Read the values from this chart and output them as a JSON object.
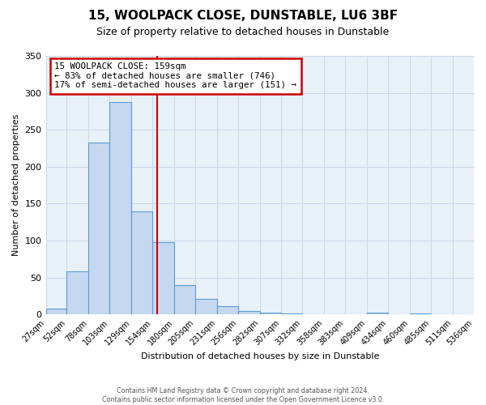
{
  "title": "15, WOOLPACK CLOSE, DUNSTABLE, LU6 3BF",
  "subtitle": "Size of property relative to detached houses in Dunstable",
  "xlabel": "Distribution of detached houses by size in Dunstable",
  "ylabel": "Number of detached properties",
  "bar_values": [
    8,
    58,
    233,
    288,
    140,
    98,
    40,
    21,
    11,
    5,
    3,
    1,
    0,
    0,
    0,
    3,
    0,
    1,
    0,
    0
  ],
  "bin_edges": [
    27,
    52,
    78,
    103,
    129,
    154,
    180,
    205,
    231,
    256,
    282,
    307,
    332,
    358,
    383,
    409,
    434,
    460,
    485,
    511,
    536
  ],
  "bin_labels": [
    "27sqm",
    "52sqm",
    "78sqm",
    "103sqm",
    "129sqm",
    "154sqm",
    "180sqm",
    "205sqm",
    "231sqm",
    "256sqm",
    "282sqm",
    "307sqm",
    "332sqm",
    "358sqm",
    "383sqm",
    "409sqm",
    "434sqm",
    "460sqm",
    "485sqm",
    "511sqm",
    "536sqm"
  ],
  "bar_color": "#c5d8f0",
  "bar_edge_color": "#5b9bd5",
  "vline_x": 159,
  "vline_color": "#cc0000",
  "ylim": [
    0,
    350
  ],
  "yticks": [
    0,
    50,
    100,
    150,
    200,
    250,
    300,
    350
  ],
  "annotation_line1": "15 WOOLPACK CLOSE: 159sqm",
  "annotation_line2": "← 83% of detached houses are smaller (746)",
  "annotation_line3": "17% of semi-detached houses are larger (151) →",
  "annotation_box_color": "#cc0000",
  "footer_line1": "Contains HM Land Registry data © Crown copyright and database right 2024.",
  "footer_line2": "Contains public sector information licensed under the Open Government Licence v3.0.",
  "grid_color": "#c8d8e8",
  "bg_color": "#e8f0f8"
}
